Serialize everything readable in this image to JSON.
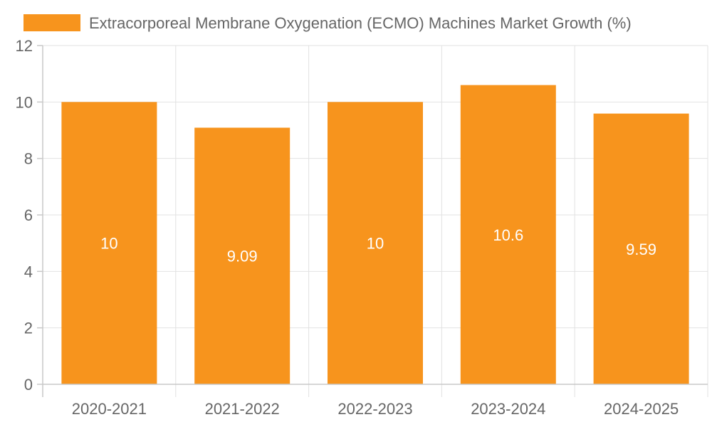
{
  "chart_data": {
    "type": "bar",
    "title": "",
    "categories": [
      "2020-2021",
      "2021-2022",
      "2022-2023",
      "2023-2024",
      "2024-2025"
    ],
    "series": [
      {
        "name": "Extracorporeal Membrane Oxygenation (ECMO) Machines Market Growth (%)",
        "values": [
          10,
          9.09,
          10,
          10.6,
          9.59
        ],
        "color": "#f7941d"
      }
    ],
    "data_labels": [
      "10",
      "9.09",
      "10",
      "10.6",
      "9.59"
    ],
    "y_ticks": [
      "0",
      "2",
      "4",
      "6",
      "8",
      "10",
      "12"
    ],
    "ylim": [
      0,
      12
    ],
    "xlabel": "",
    "ylabel": "",
    "grid": true,
    "legend_position": "top"
  },
  "colors": {
    "bar": "#f7941d",
    "grid": "#e2e2e2",
    "axis": "#c8c8c8",
    "text": "#666666",
    "data_label": "#ffffff"
  }
}
